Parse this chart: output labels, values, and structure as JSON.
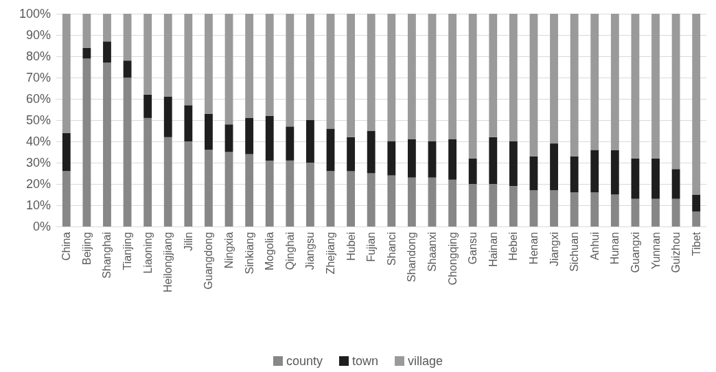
{
  "chart_data": {
    "type": "bar",
    "stacked": true,
    "categories": [
      "China",
      "Beijing",
      "Shanghai",
      "Tianjing",
      "Liaoning",
      "Heilongjiang",
      "Jilin",
      "Guangdong",
      "Ningxia",
      "Sinkiang",
      "Mogolia",
      "Qinghai",
      "Jiangsu",
      "Zhejiang",
      "Hubei",
      "Fujian",
      "Shanci",
      "Shandong",
      "Shaanxi",
      "Chongqing",
      "Gansu",
      "Hainan",
      "Hebei",
      "Henan",
      "Jiangxi",
      "Sichuan",
      "Anhui",
      "Hunan",
      "Guangxi",
      "Yunnan",
      "Guizhou",
      "Tibet"
    ],
    "series": [
      {
        "name": "county",
        "color": "#878787",
        "values": [
          26,
          79,
          77,
          70,
          51,
          42,
          40,
          36,
          35,
          34,
          31,
          31,
          30,
          26,
          26,
          25,
          24,
          23,
          23,
          22,
          20,
          20,
          19,
          17,
          17,
          16,
          16,
          15,
          13,
          13,
          13,
          7
        ]
      },
      {
        "name": "town",
        "color": "#1e1e1e",
        "values": [
          18,
          5,
          10,
          8,
          11,
          19,
          17,
          17,
          13,
          17,
          21,
          16,
          20,
          20,
          16,
          20,
          16,
          18,
          17,
          19,
          12,
          22,
          21,
          16,
          22,
          17,
          20,
          21,
          19,
          19,
          14,
          8
        ]
      },
      {
        "name": "village",
        "color": "#9a9a9a",
        "values": [
          56,
          16,
          13,
          22,
          38,
          39,
          43,
          47,
          52,
          49,
          48,
          53,
          50,
          54,
          58,
          55,
          60,
          59,
          60,
          59,
          68,
          58,
          60,
          67,
          61,
          67,
          64,
          64,
          68,
          68,
          73,
          85
        ]
      }
    ],
    "ylim": [
      0,
      100
    ],
    "yticks": [
      {
        "value": 0,
        "label": "0%"
      },
      {
        "value": 10,
        "label": "10%"
      },
      {
        "value": 20,
        "label": "20%"
      },
      {
        "value": 30,
        "label": "30%"
      },
      {
        "value": 40,
        "label": "40%"
      },
      {
        "value": 50,
        "label": "50%"
      },
      {
        "value": 60,
        "label": "60%"
      },
      {
        "value": 70,
        "label": "70%"
      },
      {
        "value": 80,
        "label": "80%"
      },
      {
        "value": 90,
        "label": "90%"
      },
      {
        "value": 100,
        "label": "100%"
      }
    ],
    "grid": "y",
    "legend": "bottom"
  }
}
